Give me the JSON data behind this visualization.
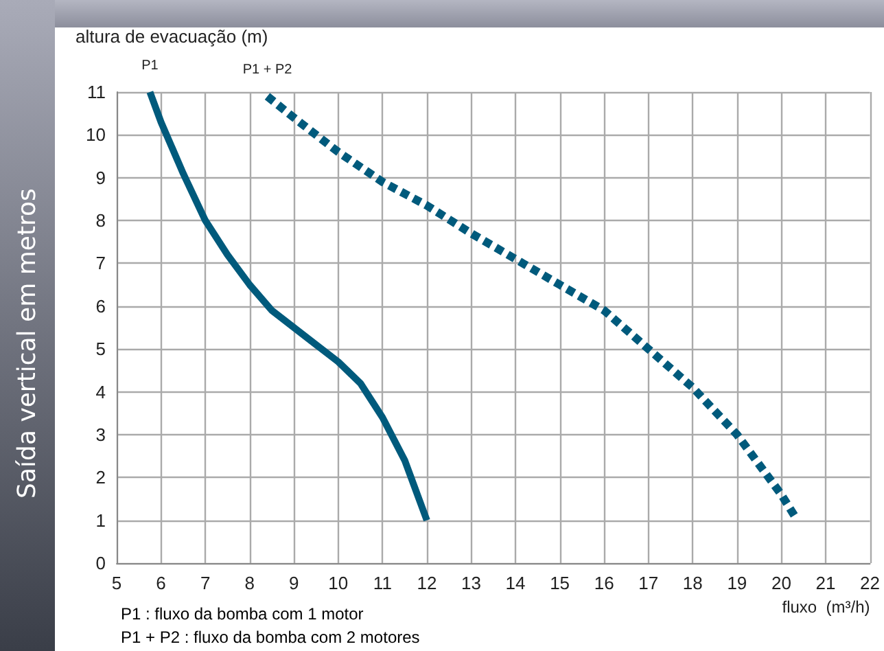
{
  "chart_data": {
    "type": "line",
    "title": "Saída vertical em metros",
    "ylabel": "altura de evacuação (m)",
    "xlabel": "fluxo  (m³/h)",
    "annotations": [
      "P1 : fluxo da bomba com 1 motor",
      "P1 + P2 : fluxo da bomba com 2 motores"
    ],
    "xlim": [
      5,
      22
    ],
    "xticks": [
      5,
      6,
      7,
      8,
      9,
      10,
      11,
      12,
      13,
      14,
      15,
      16,
      17,
      18,
      19,
      20,
      21,
      22
    ],
    "ylim": [
      0,
      11
    ],
    "yticks": [
      0,
      1,
      2,
      3,
      4,
      5,
      6,
      7,
      8,
      9,
      10,
      11
    ],
    "grid": true,
    "legend": false,
    "marker": "none",
    "series": [
      {
        "name": "P1",
        "color": "#005a7c",
        "line_style": "solid",
        "x": [
          5.75,
          6,
          6.5,
          7,
          7.5,
          8,
          8.5,
          9,
          9.5,
          10,
          10.5,
          11,
          11.5,
          12
        ],
        "values": [
          11,
          10.3,
          9.1,
          8,
          7.2,
          6.5,
          5.9,
          5.5,
          5.1,
          4.7,
          4.2,
          3.4,
          2.4,
          1
        ]
      },
      {
        "name": "P1 + P2",
        "color": "#005a7c",
        "line_style": "dashed",
        "x": [
          8.4,
          9,
          10,
          11,
          12,
          13,
          14,
          15,
          16,
          17,
          18,
          19,
          19.5,
          20,
          20.3
        ],
        "values": [
          10.9,
          10.4,
          9.6,
          8.9,
          8.35,
          7.7,
          7.1,
          6.5,
          5.9,
          5,
          4.1,
          3,
          2.3,
          1.6,
          1.1
        ]
      }
    ]
  }
}
